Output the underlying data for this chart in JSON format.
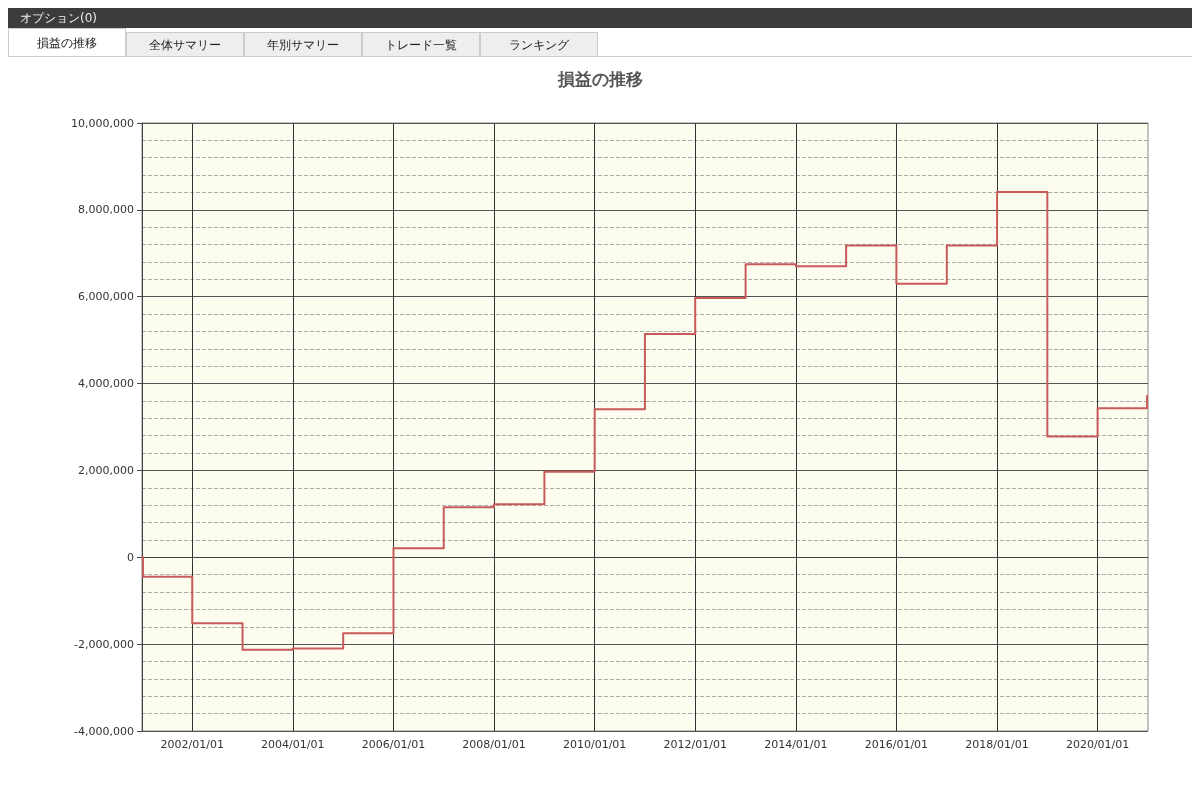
{
  "chart_data": {
    "type": "step",
    "title": "損益の推移",
    "annotations": [
      "オプション(0)",
      "損益の推移",
      "全体サマリー",
      "年別サマリー",
      "トレード一覧",
      "ランキング"
    ],
    "x": [
      "2001-01-01",
      "2001-01-08",
      "2002-01-01",
      "2003-01-01",
      "2004-01-01",
      "2005-01-01",
      "2006-01-01",
      "2007-01-01",
      "2008-01-01",
      "2009-01-01",
      "2010-01-01",
      "2011-01-01",
      "2012-01-01",
      "2013-01-01",
      "2014-01-01",
      "2015-01-01",
      "2016-01-01",
      "2017-01-01",
      "2018-01-01",
      "2019-01-01",
      "2020-01-01",
      "2020-12-25"
    ],
    "series": [
      {
        "color": "#c85a5a",
        "values": [
          0,
          -450000,
          -1520000,
          -2130000,
          -2100000,
          -1750000,
          210000,
          1150000,
          1220000,
          1970000,
          3410000,
          5140000,
          5970000,
          6750000,
          6700000,
          7180000,
          6300000,
          7180000,
          8410000,
          2780000,
          3430000,
          3720000
        ]
      }
    ],
    "xlim": [
      "2001-01-01",
      "2021-01-01"
    ],
    "xticks": [
      {
        "value": "2002-01-01",
        "label": "2002/01/01"
      },
      {
        "value": "2004-01-01",
        "label": "2004/01/01"
      },
      {
        "value": "2006-01-01",
        "label": "2006/01/01"
      },
      {
        "value": "2008-01-01",
        "label": "2008/01/01"
      },
      {
        "value": "2010-01-01",
        "label": "2010/01/01"
      },
      {
        "value": "2012-01-01",
        "label": "2012/01/01"
      },
      {
        "value": "2014-01-01",
        "label": "2014/01/01"
      },
      {
        "value": "2016-01-01",
        "label": "2016/01/01"
      },
      {
        "value": "2018-01-01",
        "label": "2018/01/01"
      },
      {
        "value": "2020-01-01",
        "label": "2020/01/01"
      }
    ],
    "ylim": [
      -4000000,
      10000000
    ],
    "yticks": [
      {
        "value": -4000000,
        "label": "-4,000,000"
      },
      {
        "value": -2000000,
        "label": "-2,000,000"
      },
      {
        "value": 0,
        "label": "0"
      },
      {
        "value": 2000000,
        "label": "2,000,000"
      },
      {
        "value": 4000000,
        "label": "4,000,000"
      },
      {
        "value": 6000000,
        "label": "6,000,000"
      },
      {
        "value": 8000000,
        "label": "8,000,000"
      },
      {
        "value": 10000000,
        "label": "10,000,000"
      }
    ],
    "grid": true,
    "marker": "none",
    "line_style": "solid"
  }
}
